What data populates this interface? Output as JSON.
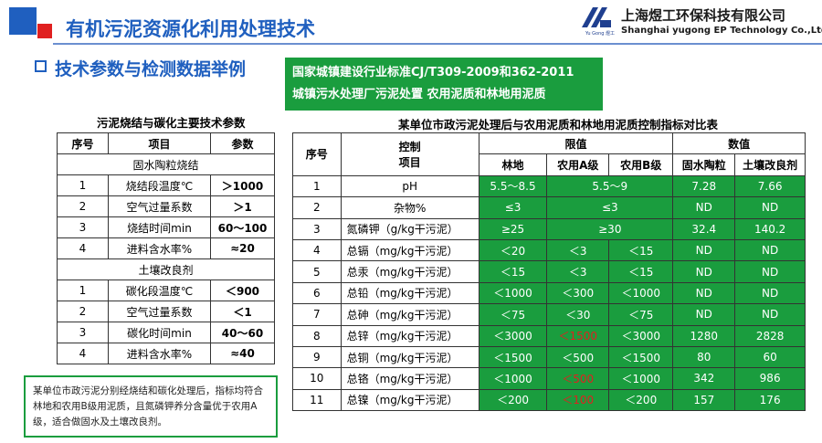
{
  "header": {
    "title": "有机污泥资源化利用处理技术",
    "company_cn": "上海煜工环保科技有限公司",
    "company_en": "Shanghai yugong EP Technology Co.,Ltd.",
    "logo_sub": "Yu Gong 煜工",
    "colors": {
      "blue": "#1f5fbf",
      "red": "#e02020",
      "green": "#1a9d3e"
    }
  },
  "section_title": "技术参数与检测数据举例",
  "standard_box": {
    "line1": "国家城镇建设行业标准CJ/T309-2009和362-2011",
    "line2": "城镇污水处理厂污泥处置   农用泥质和林地用泥质"
  },
  "left_table": {
    "caption": "污泥烧结与碳化主要技术参数",
    "headers": [
      "序号",
      "项目",
      "参数"
    ],
    "group1": "固水陶粒烧结",
    "rows1": [
      [
        "1",
        "烧结段温度℃",
        "＞1000"
      ],
      [
        "2",
        "空气过量系数",
        "＞1"
      ],
      [
        "3",
        "烧结时间min",
        "60～100"
      ],
      [
        "4",
        "进料含水率%",
        "≈20"
      ]
    ],
    "group2": "土壤改良剂",
    "rows2": [
      [
        "1",
        "碳化段温度℃",
        "＜900"
      ],
      [
        "2",
        "空气过量系数",
        "＜1"
      ],
      [
        "3",
        "碳化时间min",
        "40～60"
      ],
      [
        "4",
        "进料含水率%",
        "≈40"
      ]
    ]
  },
  "right_table": {
    "caption": "某单位市政污泥处理后与农用泥质和林地用泥质控制指标对比表",
    "headers": {
      "seq": "序号",
      "item_line1": "控制",
      "item_line2": "项目",
      "limits": "限值",
      "values": "数值",
      "sub": [
        "林地",
        "农用A级",
        "农用B级",
        "固水陶粒",
        "土壤改良剂"
      ]
    },
    "rows": [
      [
        "1",
        "pH",
        "5.5～8.5",
        "5.5～9",
        "",
        "7.28",
        "7.66"
      ],
      [
        "2",
        "杂物%",
        "≤3",
        "≤3",
        "",
        "ND",
        "ND"
      ],
      [
        "3",
        "氮磷钾（g/kg干污泥）",
        "≥25",
        "≥30",
        "",
        "32.4",
        "140.2"
      ],
      [
        "4",
        "总镉（mg/kg干污泥）",
        "＜20",
        "＜3",
        "＜15",
        "ND",
        "ND"
      ],
      [
        "5",
        "总汞（mg/kg干污泥）",
        "＜15",
        "＜3",
        "＜15",
        "ND",
        "ND"
      ],
      [
        "6",
        "总铅（mg/kg干污泥）",
        "＜1000",
        "＜300",
        "＜1000",
        "ND",
        "ND"
      ],
      [
        "7",
        "总砷（mg/kg干污泥）",
        "＜75",
        "＜30",
        "＜75",
        "ND",
        "ND"
      ],
      [
        "8",
        "总锌（mg/kg干污泥）",
        "＜3000",
        "＜1500",
        "＜3000",
        "1280",
        "2828"
      ],
      [
        "9",
        "总铜（mg/kg干污泥）",
        "＜1500",
        "＜500",
        "＜1500",
        "80",
        "60"
      ],
      [
        "10",
        "总铬（mg/kg干污泥）",
        "＜1000",
        "＜500",
        "＜1000",
        "342",
        "986"
      ],
      [
        "11",
        "总镍（mg/kg干污泥）",
        "＜200",
        "＜100",
        "＜200",
        "157",
        "176"
      ]
    ]
  },
  "note": "某单位市政污泥分别经烧结和碳化处理后，指标均符合林地和农用B级用泥质，且氮磷钾养分含量优于农用A级，适合做固水及土壤改良剂。"
}
